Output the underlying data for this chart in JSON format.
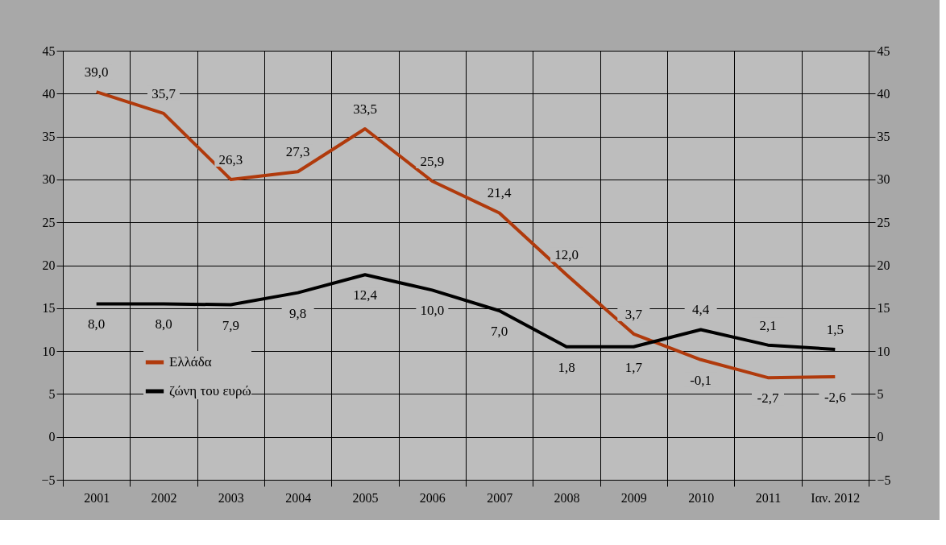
{
  "chart_data": {
    "type": "line",
    "categories": [
      "2001",
      "2002",
      "2003",
      "2004",
      "2005",
      "2006",
      "2007",
      "2008",
      "2009",
      "2010",
      "2011",
      "Ιαν. 2012"
    ],
    "series": [
      {
        "name": "Ελλάδα",
        "color": "#b03a0c",
        "values": [
          40.2,
          37.7,
          30.0,
          30.9,
          35.9,
          29.8,
          26.1,
          18.9,
          12.0,
          9.0,
          6.9,
          7.0
        ]
      },
      {
        "name": "ζώνη του ευρώ",
        "color": "#000000",
        "values": [
          15.5,
          15.5,
          15.4,
          16.8,
          18.9,
          17.1,
          14.7,
          10.5,
          10.5,
          12.5,
          10.7,
          10.2
        ]
      }
    ],
    "annotations": [
      {
        "text": "39,0",
        "x": "2001",
        "y": 40.2
      },
      {
        "text": "35,7",
        "x": "2002",
        "y": 37.7
      },
      {
        "text": "26,3",
        "x": "2003",
        "y": 30.0
      },
      {
        "text": "27,3",
        "x": "2004",
        "y": 30.9
      },
      {
        "text": "33,5",
        "x": "2005",
        "y": 35.9
      },
      {
        "text": "25,9",
        "x": "2006",
        "y": 29.8
      },
      {
        "text": "21,4",
        "x": "2007",
        "y": 26.1
      },
      {
        "text": "12,0",
        "x": "2008",
        "y": 18.9
      },
      {
        "text": "3,7",
        "x": "2009",
        "y": 12.0
      },
      {
        "text": "-0,1",
        "x": "2010",
        "y": 9.0
      },
      {
        "text": "-2,7",
        "x": "2011",
        "y": 6.9
      },
      {
        "text": "-2,6",
        "x": "Ιαν. 2012",
        "y": 7.0
      },
      {
        "text": "8,0",
        "x": "2001",
        "y": 15.5
      },
      {
        "text": "8,0",
        "x": "2002",
        "y": 15.5
      },
      {
        "text": "7,9",
        "x": "2003",
        "y": 15.4
      },
      {
        "text": "9,8",
        "x": "2004",
        "y": 16.8
      },
      {
        "text": "12,4",
        "x": "2005",
        "y": 18.9
      },
      {
        "text": "10,0",
        "x": "2006",
        "y": 17.1
      },
      {
        "text": "7,0",
        "x": "2007",
        "y": 14.7
      },
      {
        "text": "1,8",
        "x": "2008",
        "y": 10.5
      },
      {
        "text": "1,7",
        "x": "2009",
        "y": 10.5
      },
      {
        "text": "4,4",
        "x": "2010",
        "y": 12.5
      },
      {
        "text": "2,1",
        "x": "2011",
        "y": 10.7
      },
      {
        "text": "1,5",
        "x": "Ιαν. 2012",
        "y": 10.2
      }
    ],
    "ylim": [
      -5,
      45
    ],
    "yticks": [
      -5,
      0,
      5,
      10,
      15,
      20,
      25,
      30,
      35,
      40,
      45
    ],
    "y2lim": [
      -5,
      45
    ],
    "y2ticks": [
      -5,
      0,
      5,
      10,
      15,
      20,
      25,
      30,
      35,
      40,
      45
    ],
    "grid": true,
    "legend": "bottom left",
    "marker": "none",
    "line_style": "solid"
  }
}
